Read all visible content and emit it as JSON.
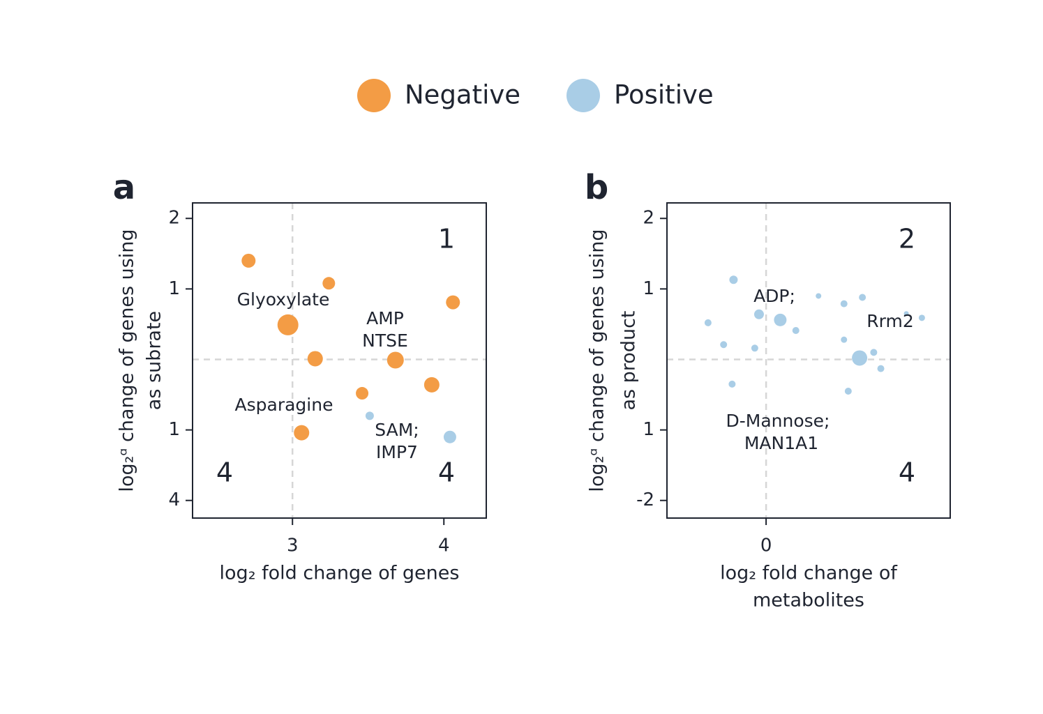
{
  "chart_data": [
    {
      "type": "scatter",
      "panel": "a",
      "xlabel": [
        "log₂ fold change of genes"
      ],
      "ylabel": [
        "log₂ᵅ change of genes using",
        "as subrate"
      ],
      "xlim": [
        2.34,
        4.28
      ],
      "ylim": [
        -2.25,
        2.22
      ],
      "xticks": [
        3,
        4
      ],
      "yticks": [
        2,
        1,
        {
          "value": -1,
          "label": "1"
        },
        {
          "value": -2,
          "label": "4"
        }
      ],
      "vline": 3,
      "hline": 0,
      "series": [
        {
          "name": "Negative",
          "color": "#f39c45",
          "x": [
            2.71,
            3.24,
            4.06,
            2.97,
            3.15,
            3.68,
            3.92,
            3.46,
            3.06
          ],
          "values": [
            1.4,
            1.08,
            0.81,
            0.49,
            0.01,
            -0.01,
            -0.36,
            -0.48,
            -1.04
          ],
          "sizes": [
            2,
            1.8,
            2,
            3,
            2.2,
            2.4,
            2.2,
            1.8,
            2.2
          ]
        },
        {
          "name": "Positive",
          "color": "#a9cde6",
          "x": [
            3.51,
            4.04
          ],
          "values": [
            -0.8,
            -1.1
          ],
          "sizes": [
            1.2,
            1.8
          ]
        }
      ],
      "annotations": [
        [
          "Glyoxylate"
        ],
        [
          "AMP",
          "NTSE"
        ],
        [
          "Asparagine"
        ],
        [
          "SAM;",
          "IMP7"
        ]
      ],
      "quadrant_labels": [
        "1",
        "4",
        "4"
      ]
    },
    {
      "type": "scatter",
      "panel": "b",
      "xlabel": [
        "log₂ fold change of",
        "metabolites"
      ],
      "ylabel": [
        "log₂ᵅ change of genes using",
        "as product"
      ],
      "xlim": [
        -0.7,
        1.3
      ],
      "ylim": [
        -2.25,
        2.22
      ],
      "xticks": [
        0
      ],
      "yticks": [
        2,
        1,
        {
          "value": -1,
          "label": "1"
        },
        -2
      ],
      "vline": 0,
      "hline": 0,
      "series": [
        {
          "name": "Positive",
          "color": "#a9cde6",
          "x": [
            -0.23,
            -0.41,
            -0.3,
            -0.24,
            -0.05,
            -0.08,
            0.1,
            0.21,
            0.37,
            0.55,
            0.68,
            0.55,
            0.66,
            0.76,
            0.81,
            0.58,
            0.99,
            1.1
          ],
          "values": [
            1.13,
            0.52,
            0.21,
            -0.35,
            0.64,
            0.16,
            0.56,
            0.41,
            0.9,
            0.79,
            0.88,
            0.28,
            0.02,
            0.1,
            -0.13,
            -0.45,
            0.65,
            0.59
          ],
          "sizes": [
            1.2,
            1,
            1,
            1,
            1.4,
            1,
            1.8,
            1,
            0.8,
            1,
            1,
            0.9,
            2.2,
            1,
            1,
            1,
            0.7,
            0.9
          ]
        }
      ],
      "annotations": [
        [
          "ADP;"
        ],
        [
          "Rrm2"
        ],
        [
          "D-Mannose;",
          "MAN1A1"
        ]
      ],
      "quadrant_labels": [
        "2",
        "4"
      ]
    }
  ]
}
